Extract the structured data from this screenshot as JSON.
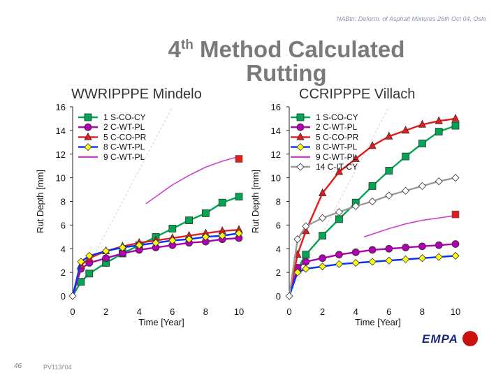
{
  "header_note": "NABtn: Deform. of Asphalt Mixtures 26th Oct 04, Oslo",
  "title_prefix": "4",
  "title_sup": "th",
  "title_rest": " Method Calculated Rutting",
  "left_subtitle": "WWRIPPPE Mindelo",
  "right_subtitle": "CCRIPPPE Villach",
  "page_number": "46",
  "footer_code": "PV113/'04",
  "logo_text": "EMPA",
  "colors": {
    "green": "#00a651",
    "purple": "#b000b0",
    "red": "#e31b1b",
    "blue": "#0033ff",
    "grey": "#9a9a9a",
    "magenta": "#cc44cc"
  },
  "chart_data": [
    {
      "type": "line",
      "title": "WWRIPPPE Mindelo",
      "xlabel": "Time [Year]",
      "ylabel": "Rut Depth [mm]",
      "xlim": [
        0,
        10
      ],
      "ylim": [
        0,
        16
      ],
      "xticks": [
        0,
        2,
        4,
        6,
        8,
        10
      ],
      "yticks": [
        0,
        2,
        4,
        6,
        8,
        10,
        12,
        14,
        16
      ],
      "legend": "top-left",
      "series": [
        {
          "name": "1 S-CO-CY",
          "marker": "square",
          "color": "#00a651",
          "x": [
            0,
            0.5,
            1,
            2,
            3,
            4,
            5,
            6,
            7,
            8,
            9,
            10
          ],
          "y": [
            0,
            1.2,
            1.9,
            2.8,
            3.6,
            4.3,
            5.0,
            5.7,
            6.4,
            7.0,
            7.9,
            8.4
          ]
        },
        {
          "name": "2 C-WT-PL",
          "marker": "circle",
          "color": "#b000b0",
          "x": [
            0,
            0.5,
            1,
            2,
            3,
            4,
            5,
            6,
            7,
            8,
            9,
            10
          ],
          "y": [
            0,
            2.3,
            2.8,
            3.2,
            3.6,
            3.9,
            4.1,
            4.3,
            4.5,
            4.6,
            4.8,
            4.9
          ]
        },
        {
          "name": "5 C-CO-PR",
          "marker": "triangle",
          "color": "#e31b1b",
          "x": [
            0,
            0.5,
            1,
            2,
            3,
            4,
            5,
            6,
            7,
            8,
            9,
            10
          ],
          "y": [
            0,
            2.6,
            3.2,
            3.8,
            4.2,
            4.5,
            4.7,
            4.9,
            5.1,
            5.3,
            5.5,
            5.6
          ]
        },
        {
          "name": "8 C-WT-PL",
          "marker": "diamond",
          "color": "#0033ff",
          "x": [
            0,
            0.5,
            1,
            2,
            3,
            4,
            5,
            6,
            7,
            8,
            9,
            10
          ],
          "y": [
            0,
            2.9,
            3.4,
            3.8,
            4.1,
            4.3,
            4.5,
            4.7,
            4.8,
            5.0,
            5.1,
            5.3
          ]
        },
        {
          "name": "9 C-WT-PL",
          "marker": "line",
          "color": "#cc44cc",
          "x": [
            4.4,
            6,
            7,
            8,
            9,
            10
          ],
          "y": [
            7.8,
            9.4,
            10.2,
            10.9,
            11.4,
            11.8
          ]
        },
        {
          "name": "",
          "marker": "square-red",
          "color": "#e31b1b",
          "x": [
            10
          ],
          "y": [
            11.6
          ]
        }
      ]
    },
    {
      "type": "line",
      "title": "CCRIPPPE Villach",
      "xlabel": "Time [Year]",
      "ylabel": "Rut Depth [mm]",
      "xlim": [
        0,
        10
      ],
      "ylim": [
        0,
        16
      ],
      "xticks": [
        0,
        2,
        4,
        6,
        8,
        10
      ],
      "yticks": [
        0,
        2,
        4,
        6,
        8,
        10,
        12,
        14,
        16
      ],
      "legend": "top-left",
      "series": [
        {
          "name": "1 S-CO-CY",
          "marker": "square",
          "color": "#00a651",
          "x": [
            0,
            0.5,
            1,
            2,
            3,
            4,
            5,
            6,
            7,
            8,
            9,
            10
          ],
          "y": [
            0,
            2.3,
            3.5,
            5.1,
            6.5,
            7.9,
            9.3,
            10.6,
            11.8,
            12.9,
            13.9,
            14.4
          ]
        },
        {
          "name": "2 C-WT-PL",
          "marker": "circle",
          "color": "#b000b0",
          "x": [
            0,
            0.5,
            1,
            2,
            3,
            4,
            5,
            6,
            7,
            8,
            9,
            10
          ],
          "y": [
            0,
            2.4,
            2.9,
            3.2,
            3.5,
            3.7,
            3.9,
            4.0,
            4.1,
            4.2,
            4.3,
            4.4
          ]
        },
        {
          "name": "5 C-CO-PR",
          "marker": "triangle",
          "color": "#e31b1b",
          "x": [
            0,
            0.5,
            1,
            2,
            3,
            4,
            5,
            6,
            7,
            8,
            9,
            10
          ],
          "y": [
            0,
            3.5,
            5.5,
            8.7,
            10.5,
            11.6,
            12.7,
            13.5,
            14.0,
            14.5,
            14.8,
            15.0
          ]
        },
        {
          "name": "8 C-WT-PL",
          "marker": "diamond",
          "color": "#0033ff",
          "x": [
            0,
            0.5,
            1,
            2,
            3,
            4,
            5,
            6,
            7,
            8,
            9,
            10
          ],
          "y": [
            0,
            2.0,
            2.3,
            2.5,
            2.7,
            2.8,
            2.9,
            3.0,
            3.1,
            3.2,
            3.3,
            3.4
          ]
        },
        {
          "name": "9 C-WT-PL",
          "marker": "line",
          "color": "#cc44cc",
          "x": [
            4.5,
            6,
            7,
            8,
            9,
            10
          ],
          "y": [
            5.0,
            5.7,
            6.1,
            6.4,
            6.6,
            6.8
          ]
        },
        {
          "name": "14 C-IT-CY",
          "marker": "diamond-grey",
          "color": "#9a9a9a",
          "x": [
            0,
            0.5,
            1,
            2,
            3,
            4,
            5,
            6,
            7,
            8,
            9,
            10
          ],
          "y": [
            0,
            4.8,
            5.9,
            6.6,
            7.1,
            7.6,
            8.0,
            8.5,
            8.9,
            9.3,
            9.7,
            10.0
          ]
        },
        {
          "name": "",
          "marker": "square-red",
          "color": "#e31b1b",
          "x": [
            10
          ],
          "y": [
            6.9
          ]
        }
      ]
    }
  ]
}
